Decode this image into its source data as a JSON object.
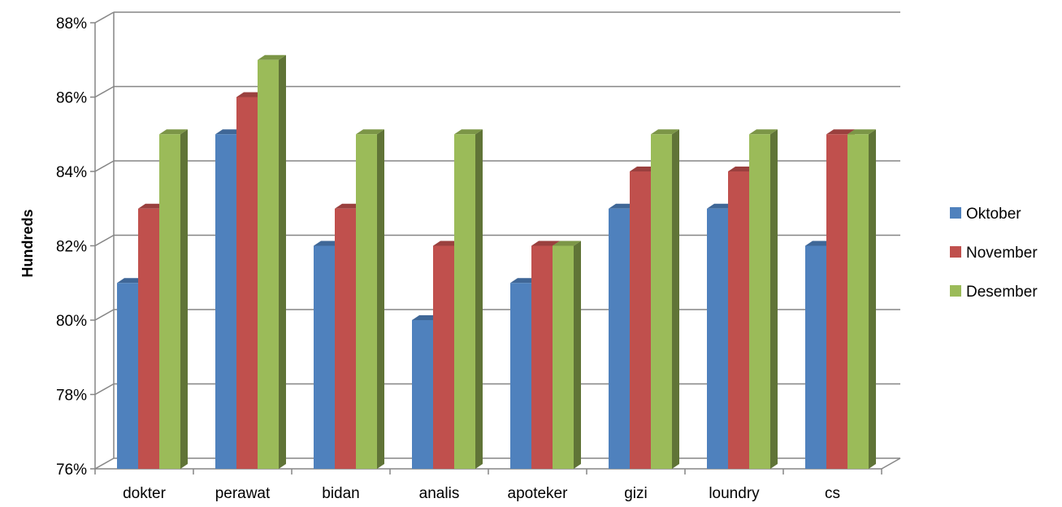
{
  "chart_data": {
    "type": "bar",
    "title": "",
    "xlabel": "",
    "ylabel": "Hundreds",
    "categories": [
      "dokter",
      "perawat",
      "bidan",
      "analis",
      "apoteker",
      "gizi",
      "loundry",
      "cs"
    ],
    "series": [
      {
        "name": "Oktober",
        "color": "#4F81BD",
        "values": [
          81,
          85,
          82,
          80,
          81,
          83,
          83,
          82
        ]
      },
      {
        "name": "November",
        "color": "#C0504D",
        "values": [
          83,
          86,
          83,
          82,
          82,
          84,
          84,
          85
        ]
      },
      {
        "name": "Desember",
        "color": "#9BBB59",
        "values": [
          85,
          87,
          85,
          85,
          82,
          85,
          85,
          85
        ]
      }
    ],
    "ylim": [
      76,
      88
    ],
    "yticks": [
      "76%",
      "78%",
      "80%",
      "82%",
      "84%",
      "86%",
      "88%"
    ],
    "grid": true,
    "legend_position": "right",
    "style": "3d-clustered-column"
  }
}
